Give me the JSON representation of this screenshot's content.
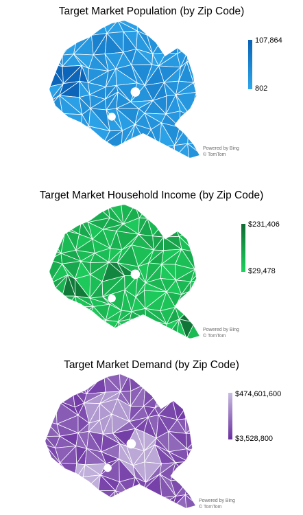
{
  "chart_data": [
    {
      "type": "map",
      "title": "Target Market Population (by Zip Code)",
      "legend": {
        "max_label": "107,864",
        "min_label": "802",
        "max": 107864,
        "min": 802
      },
      "colors": {
        "high": "#0a62b5",
        "low": "#2ea7ec",
        "border": "#ffffff"
      },
      "credit": {
        "line1": "Powered by Bing",
        "line2": "© TomTom"
      }
    },
    {
      "type": "map",
      "title": "Target Market Household Income (by Zip Code)",
      "legend": {
        "max_label": "$231,406",
        "min_label": "$29,478",
        "max": 231406,
        "min": 29478
      },
      "colors": {
        "high": "#0e6b33",
        "low": "#1ed25e",
        "border": "#ffffff"
      },
      "credit": {
        "line1": "Powered by Bing",
        "line2": "© TomTom"
      }
    },
    {
      "type": "map",
      "title": "Target Market Demand (by Zip Code)",
      "legend": {
        "max_label": "$474,601,600",
        "min_label": "$3,528,800",
        "max": 474601600,
        "min": 3528800
      },
      "colors": {
        "high": "#c9bde0",
        "low": "#6a2fa0",
        "border": "#ffffff"
      },
      "credit": {
        "line1": "Powered by Bing",
        "line2": "© TomTom"
      }
    }
  ]
}
